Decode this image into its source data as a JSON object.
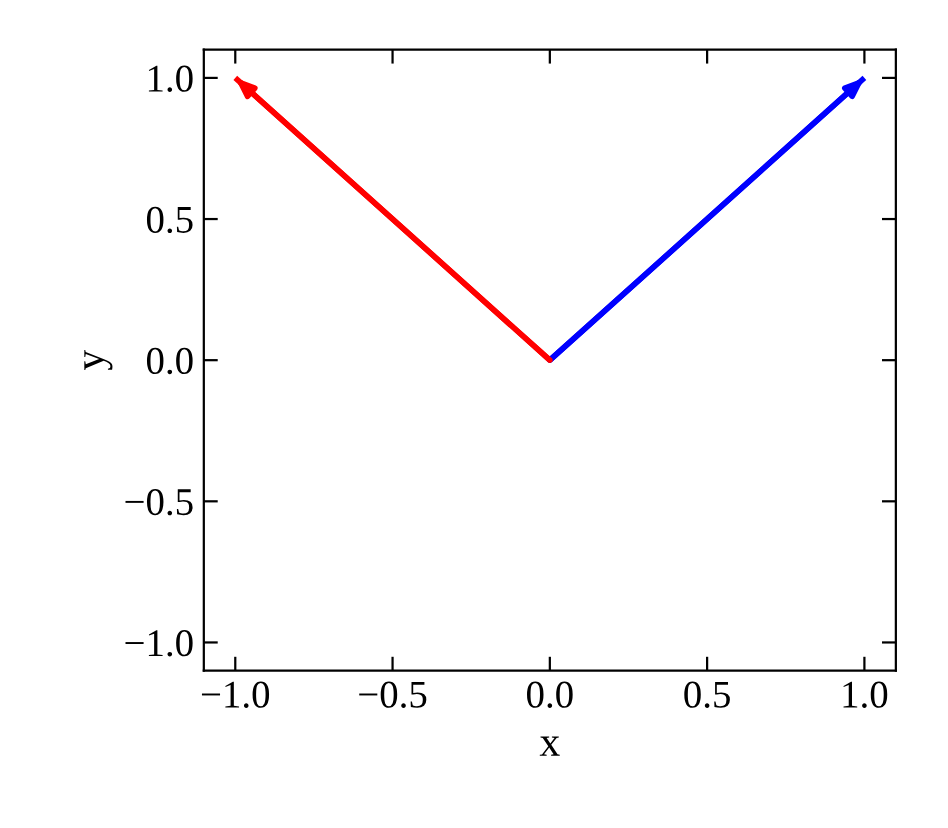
{
  "chart_data": {
    "type": "line",
    "xlabel": "x",
    "ylabel": "y",
    "series": [
      {
        "color": "#0000ff",
        "x": [
          0,
          1
        ],
        "values": [
          0,
          1
        ]
      },
      {
        "color": "#ff0000",
        "x": [
          0,
          -1
        ],
        "values": [
          0,
          1
        ]
      }
    ],
    "xlim": [
      -1.1,
      1.1
    ],
    "ylim": [
      -1.1,
      1.1
    ],
    "xticks": [
      {
        "value": -1.0,
        "label": "−1.0"
      },
      {
        "value": -0.5,
        "label": "−0.5"
      },
      {
        "value": 0.0,
        "label": "0.0"
      },
      {
        "value": 0.5,
        "label": "0.5"
      },
      {
        "value": 1.0,
        "label": "1.0"
      }
    ],
    "yticks": [
      {
        "value": -1.0,
        "label": "−1.0"
      },
      {
        "value": -0.5,
        "label": "−0.5"
      },
      {
        "value": 0.0,
        "label": "0.0"
      },
      {
        "value": 0.5,
        "label": "0.5"
      },
      {
        "value": 1.0,
        "label": "1.0"
      }
    ],
    "grid": false,
    "legend": false
  }
}
